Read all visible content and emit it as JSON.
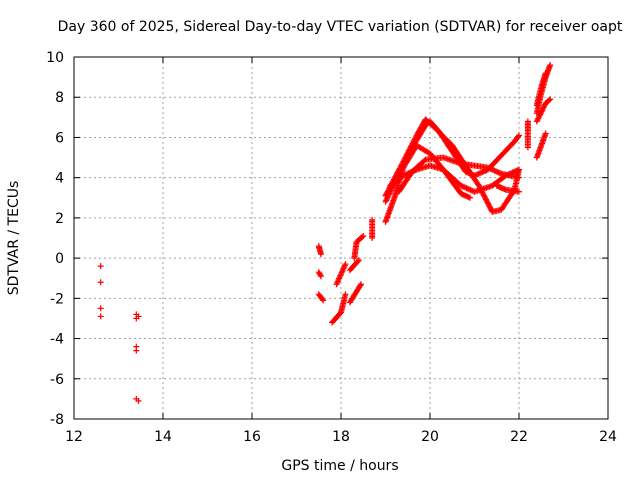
{
  "chart_data": {
    "type": "scatter",
    "title": "Day 360 of 2025, Sidereal Day-to-day VTEC variation (SDTVAR) for receiver oapt",
    "xlabel": "GPS time / hours",
    "ylabel": "SDTVAR / TECUs",
    "xlim": [
      12,
      24
    ],
    "ylim": [
      -8,
      10
    ],
    "xticks": [
      "12",
      "14",
      "16",
      "18",
      "20",
      "22",
      "24"
    ],
    "yticks": [
      "-8",
      "-6",
      "-4",
      "-2",
      "0",
      "2",
      "4",
      "6",
      "8",
      "10"
    ],
    "grid": true,
    "marker": "+",
    "color": "#ff0000",
    "series": [
      {
        "name": "early-points",
        "points": [
          [
            12.6,
            -0.4
          ],
          [
            12.6,
            -1.2
          ],
          [
            12.6,
            -2.5
          ],
          [
            12.6,
            -2.9
          ],
          [
            13.4,
            -2.8
          ],
          [
            13.4,
            -3.0
          ],
          [
            13.45,
            -2.9
          ],
          [
            13.4,
            -4.4
          ],
          [
            13.4,
            -4.6
          ],
          [
            13.4,
            -7.0
          ],
          [
            13.45,
            -7.1
          ]
        ]
      },
      {
        "name": "tracks",
        "segments": [
          [
            [
              17.5,
              0.6
            ],
            [
              17.55,
              0.2
            ]
          ],
          [
            [
              17.5,
              -0.7
            ],
            [
              17.55,
              -0.9
            ]
          ],
          [
            [
              17.5,
              -1.8
            ],
            [
              17.6,
              -2.1
            ]
          ],
          [
            [
              17.9,
              -1.3
            ],
            [
              18.1,
              -0.3
            ]
          ],
          [
            [
              17.8,
              -3.2
            ],
            [
              18.0,
              -2.7
            ],
            [
              18.1,
              -1.8
            ]
          ],
          [
            [
              18.3,
              0.0
            ],
            [
              18.35,
              0.8
            ],
            [
              18.5,
              1.1
            ]
          ],
          [
            [
              18.2,
              -0.6
            ],
            [
              18.4,
              -0.1
            ]
          ],
          [
            [
              18.2,
              -2.2
            ],
            [
              18.45,
              -1.3
            ]
          ],
          [
            [
              18.7,
              1.0
            ],
            [
              18.7,
              1.9
            ]
          ],
          [
            [
              19.0,
              1.8
            ],
            [
              19.2,
              3.0
            ],
            [
              19.4,
              4.5
            ],
            [
              19.7,
              5.6
            ],
            [
              20.0,
              5.2
            ],
            [
              20.3,
              4.4
            ],
            [
              20.7,
              3.6
            ],
            [
              21.0,
              3.3
            ],
            [
              21.4,
              3.6
            ],
            [
              21.7,
              4.1
            ],
            [
              22.0,
              4.4
            ]
          ],
          [
            [
              19.0,
              2.8
            ],
            [
              19.3,
              4.2
            ],
            [
              19.6,
              5.5
            ],
            [
              19.9,
              6.6
            ],
            [
              20.0,
              6.8
            ],
            [
              20.2,
              6.3
            ],
            [
              20.5,
              5.3
            ],
            [
              20.8,
              4.3
            ],
            [
              21.0,
              4.1
            ],
            [
              21.3,
              4.4
            ],
            [
              21.6,
              5.1
            ],
            [
              21.9,
              5.8
            ],
            [
              22.0,
              6.1
            ]
          ],
          [
            [
              19.0,
              3.1
            ],
            [
              19.4,
              4.8
            ],
            [
              19.7,
              6.1
            ],
            [
              19.9,
              6.9
            ],
            [
              20.1,
              6.5
            ],
            [
              20.5,
              5.6
            ],
            [
              20.8,
              4.6
            ],
            [
              21.1,
              3.6
            ],
            [
              21.4,
              2.3
            ],
            [
              21.6,
              2.4
            ],
            [
              21.9,
              3.4
            ],
            [
              22.0,
              4.4
            ]
          ],
          [
            [
              19.1,
              3.6
            ],
            [
              19.4,
              4.1
            ],
            [
              19.7,
              4.4
            ],
            [
              20.0,
              4.6
            ],
            [
              20.3,
              4.4
            ],
            [
              20.5,
              3.8
            ],
            [
              20.7,
              3.2
            ],
            [
              20.9,
              3.0
            ]
          ],
          [
            [
              19.3,
              3.3
            ],
            [
              19.6,
              4.3
            ],
            [
              19.9,
              4.9
            ],
            [
              20.3,
              5.0
            ],
            [
              20.7,
              4.7
            ],
            [
              21.0,
              4.6
            ],
            [
              21.3,
              4.5
            ],
            [
              21.6,
              4.2
            ],
            [
              22.0,
              4.0
            ]
          ],
          [
            [
              21.5,
              3.6
            ],
            [
              21.7,
              3.4
            ],
            [
              22.0,
              3.3
            ]
          ],
          [
            [
              22.2,
              6.8
            ],
            [
              22.2,
              6.2
            ],
            [
              22.2,
              5.5
            ]
          ],
          [
            [
              22.4,
              5.0
            ],
            [
              22.6,
              6.2
            ]
          ],
          [
            [
              22.4,
              6.8
            ],
            [
              22.6,
              7.7
            ],
            [
              22.7,
              7.9
            ]
          ],
          [
            [
              22.4,
              7.2
            ],
            [
              22.5,
              8.2
            ],
            [
              22.6,
              9.0
            ],
            [
              22.7,
              9.6
            ]
          ],
          [
            [
              22.4,
              7.6
            ],
            [
              22.5,
              8.5
            ],
            [
              22.6,
              9.2
            ]
          ]
        ]
      }
    ]
  }
}
